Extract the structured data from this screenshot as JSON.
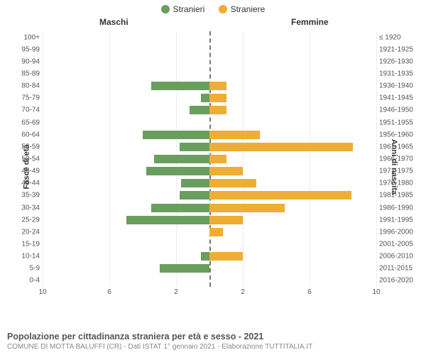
{
  "legend": {
    "male": {
      "label": "Stranieri",
      "color": "#6a9e5e"
    },
    "female": {
      "label": "Straniere",
      "color": "#f0ad33"
    }
  },
  "headers": {
    "male": "Maschi",
    "female": "Femmine"
  },
  "axis_labels": {
    "left": "Fasce di età",
    "right": "Anni di nascita"
  },
  "chart": {
    "type": "population-pyramid",
    "xlim_each_side": 10,
    "xticks_left": [
      10,
      6,
      2
    ],
    "xticks_right": [
      2,
      6,
      10
    ],
    "background_color": "#ffffff",
    "grid_color": "#eeeeee",
    "center_line_color": "#777777",
    "rows": [
      {
        "age": "100+",
        "birth": "≤ 1920",
        "m": 0,
        "f": 0
      },
      {
        "age": "95-99",
        "birth": "1921-1925",
        "m": 0,
        "f": 0
      },
      {
        "age": "90-94",
        "birth": "1926-1930",
        "m": 0,
        "f": 0
      },
      {
        "age": "85-89",
        "birth": "1931-1935",
        "m": 0,
        "f": 0
      },
      {
        "age": "80-84",
        "birth": "1936-1940",
        "m": 3.5,
        "f": 1
      },
      {
        "age": "75-79",
        "birth": "1941-1945",
        "m": 0.5,
        "f": 1
      },
      {
        "age": "70-74",
        "birth": "1946-1950",
        "m": 1.2,
        "f": 1
      },
      {
        "age": "65-69",
        "birth": "1951-1955",
        "m": 0,
        "f": 0
      },
      {
        "age": "60-64",
        "birth": "1956-1960",
        "m": 4,
        "f": 3
      },
      {
        "age": "55-59",
        "birth": "1961-1965",
        "m": 1.8,
        "f": 8.6
      },
      {
        "age": "50-54",
        "birth": "1966-1970",
        "m": 3.3,
        "f": 1
      },
      {
        "age": "45-49",
        "birth": "1971-1975",
        "m": 3.8,
        "f": 2
      },
      {
        "age": "40-44",
        "birth": "1976-1980",
        "m": 1.7,
        "f": 2.8
      },
      {
        "age": "35-39",
        "birth": "1981-1985",
        "m": 1.8,
        "f": 8.5
      },
      {
        "age": "30-34",
        "birth": "1986-1990",
        "m": 3.5,
        "f": 4.5
      },
      {
        "age": "25-29",
        "birth": "1991-1995",
        "m": 5,
        "f": 2
      },
      {
        "age": "20-24",
        "birth": "1996-2000",
        "m": 0,
        "f": 0.8
      },
      {
        "age": "15-19",
        "birth": "2001-2005",
        "m": 0,
        "f": 0
      },
      {
        "age": "10-14",
        "birth": "2006-2010",
        "m": 0.5,
        "f": 2
      },
      {
        "age": "5-9",
        "birth": "2011-2015",
        "m": 3,
        "f": 0
      },
      {
        "age": "0-4",
        "birth": "2016-2020",
        "m": 0,
        "f": 0
      }
    ]
  },
  "footer": {
    "title": "Popolazione per cittadinanza straniera per età e sesso - 2021",
    "subtitle": "COMUNE DI MOTTA BALUFFI (CR) - Dati ISTAT 1° gennaio 2021 - Elaborazione TUTTITALIA.IT"
  }
}
